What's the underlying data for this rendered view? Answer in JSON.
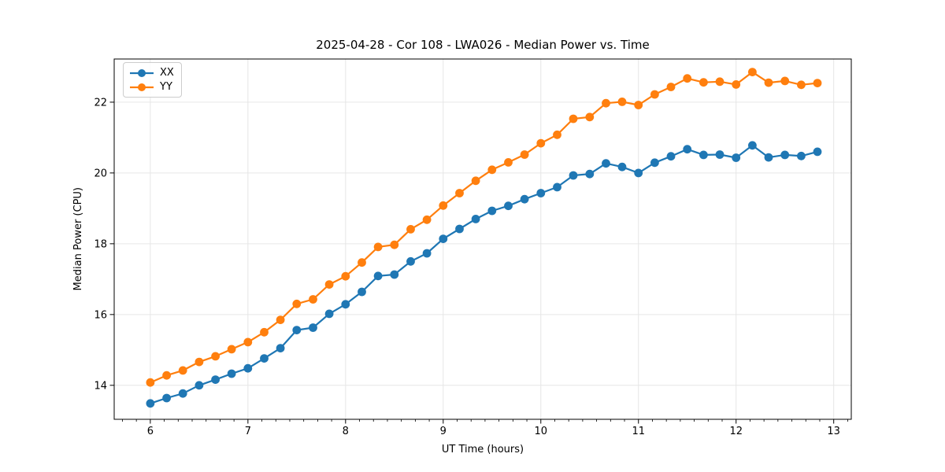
{
  "chart_data": {
    "type": "line",
    "title": "2025-04-28 - Cor 108 - LWA026 - Median Power vs. Time",
    "xlabel": "UT Time (hours)",
    "ylabel": "Median Power (CPU)",
    "x": [
      6.0,
      6.167,
      6.333,
      6.5,
      6.667,
      6.833,
      7.0,
      7.167,
      7.333,
      7.5,
      7.667,
      7.833,
      8.0,
      8.167,
      8.333,
      8.5,
      8.667,
      8.833,
      9.0,
      9.167,
      9.333,
      9.5,
      9.667,
      9.833,
      10.0,
      10.167,
      10.333,
      10.5,
      10.667,
      10.833,
      11.0,
      11.167,
      11.333,
      11.5,
      11.667,
      11.833,
      12.0,
      12.167,
      12.333,
      12.5,
      12.667,
      12.833
    ],
    "series": [
      {
        "name": "XX",
        "color": "#1f77b4",
        "values": [
          13.49,
          13.64,
          13.77,
          14.0,
          14.16,
          14.33,
          14.48,
          14.76,
          15.05,
          15.56,
          15.63,
          16.02,
          16.29,
          16.64,
          17.09,
          17.13,
          17.5,
          17.73,
          18.14,
          18.42,
          18.7,
          18.93,
          19.07,
          19.26,
          19.43,
          19.6,
          19.93,
          19.97,
          20.27,
          20.17,
          20.0,
          20.29,
          20.47,
          20.67,
          20.51,
          20.52,
          20.43,
          20.78,
          20.44,
          20.51,
          20.48,
          20.6
        ]
      },
      {
        "name": "YY",
        "color": "#ff7f0e",
        "values": [
          14.08,
          14.28,
          14.42,
          14.66,
          14.82,
          15.02,
          15.22,
          15.5,
          15.85,
          16.3,
          16.43,
          16.85,
          17.08,
          17.47,
          17.91,
          17.97,
          18.41,
          18.68,
          19.08,
          19.43,
          19.78,
          20.09,
          20.3,
          20.52,
          20.84,
          21.08,
          21.53,
          21.58,
          21.97,
          22.01,
          21.92,
          22.22,
          22.43,
          22.67,
          22.56,
          22.58,
          22.5,
          22.85,
          22.55,
          22.6,
          22.49,
          22.54
        ]
      }
    ],
    "legend": {
      "labels": [
        "XX",
        "YY"
      ],
      "position": "upper left"
    },
    "xlim": [
      5.63,
      13.18
    ],
    "ylim": [
      13.04,
      23.22
    ],
    "xticks": [
      6,
      7,
      8,
      9,
      10,
      11,
      12,
      13
    ],
    "yticks": [
      14,
      16,
      18,
      20,
      22
    ],
    "x_minor_subdivisions": 7,
    "grid": true,
    "colors": {
      "grid": "#e6e6e6",
      "spine": "#000000",
      "tick": "#000000",
      "text": "#000000",
      "background": "#ffffff"
    }
  }
}
